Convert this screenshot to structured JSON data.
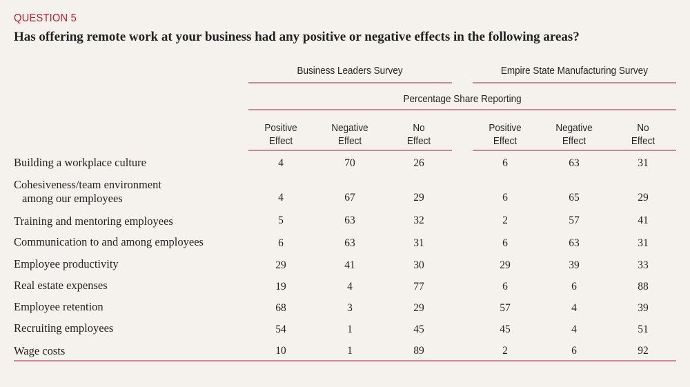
{
  "question_label": "QUESTION 5",
  "title": "Has offering remote work at your business had any positive or negative effects in the following areas?",
  "chart_data": {
    "type": "table",
    "groups": [
      "Business Leaders Survey",
      "Empire State Manufacturing Survey"
    ],
    "subtitle": "Percentage Share Reporting",
    "columns": [
      [
        "Positive",
        "Effect"
      ],
      [
        "Negative",
        "Effect"
      ],
      [
        "No",
        "Effect"
      ],
      [
        "Positive",
        "Effect"
      ],
      [
        "Negative",
        "Effect"
      ],
      [
        "No",
        "Effect"
      ]
    ],
    "rows": [
      {
        "label": [
          "Building a workplace culture"
        ],
        "values": [
          4,
          70,
          26,
          6,
          63,
          31
        ]
      },
      {
        "label": [
          "Cohesiveness/team environment",
          "among our employees"
        ],
        "values": [
          4,
          67,
          29,
          6,
          65,
          29
        ]
      },
      {
        "label": [
          "Training and mentoring employees"
        ],
        "values": [
          5,
          63,
          32,
          2,
          57,
          41
        ]
      },
      {
        "label": [
          "Communication to and among employees"
        ],
        "values": [
          6,
          63,
          31,
          6,
          63,
          31
        ]
      },
      {
        "label": [
          "Employee productivity"
        ],
        "values": [
          29,
          41,
          30,
          29,
          39,
          33
        ]
      },
      {
        "label": [
          "Real estate expenses"
        ],
        "values": [
          19,
          4,
          77,
          6,
          6,
          88
        ]
      },
      {
        "label": [
          "Employee retention"
        ],
        "values": [
          68,
          3,
          29,
          57,
          4,
          39
        ]
      },
      {
        "label": [
          "Recruiting employees"
        ],
        "values": [
          54,
          1,
          45,
          45,
          4,
          51
        ]
      },
      {
        "label": [
          "Wage costs"
        ],
        "values": [
          10,
          1,
          89,
          2,
          6,
          92
        ]
      }
    ]
  },
  "colors": {
    "accent": "#c0203a",
    "rule": "#c98a96",
    "background": "#f5f1ec"
  }
}
